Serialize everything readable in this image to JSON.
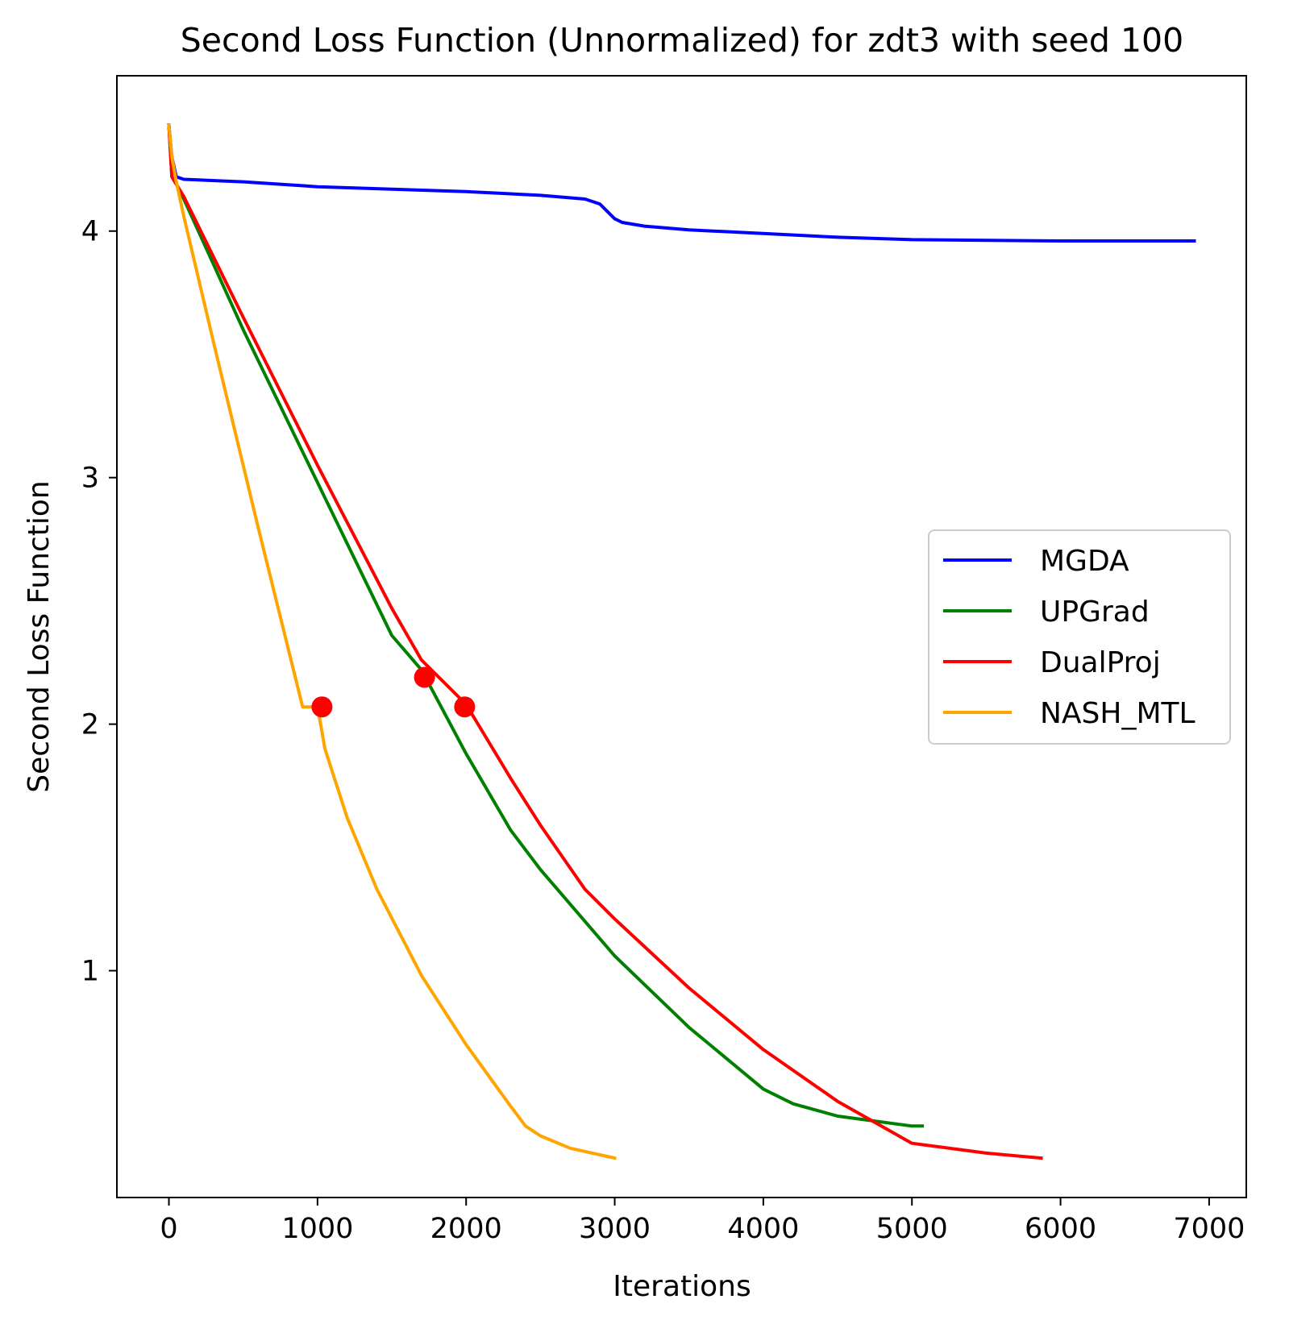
{
  "chart_data": {
    "type": "line",
    "title": "Second Loss Function (Unnormalized) for zdt3 with seed 100",
    "xlabel": "Iterations",
    "ylabel": "Second Loss Function",
    "xlim": [
      -350,
      7250
    ],
    "ylim": [
      0.08,
      4.63
    ],
    "xticks": [
      0,
      1000,
      2000,
      3000,
      4000,
      5000,
      6000,
      7000
    ],
    "yticks": [
      1,
      2,
      3,
      4
    ],
    "grid": false,
    "legend_position": "center-right",
    "series": [
      {
        "name": "MGDA",
        "color": "#0000ff",
        "x": [
          0,
          20,
          50,
          100,
          500,
          1000,
          2000,
          2500,
          2800,
          2900,
          2950,
          3000,
          3050,
          3200,
          3500,
          4000,
          4500,
          5000,
          6000,
          6900
        ],
        "y": [
          4.43,
          4.3,
          4.22,
          4.21,
          4.2,
          4.18,
          4.16,
          4.145,
          4.13,
          4.11,
          4.08,
          4.05,
          4.035,
          4.02,
          4.005,
          3.99,
          3.975,
          3.965,
          3.96,
          3.96
        ]
      },
      {
        "name": "UPGrad",
        "color": "#008000",
        "x": [
          0,
          20,
          50,
          100,
          500,
          1000,
          1500,
          1700,
          2000,
          2300,
          2500,
          3000,
          3500,
          4000,
          4200,
          4500,
          5000,
          5070
        ],
        "y": [
          4.43,
          4.22,
          4.19,
          4.13,
          3.6,
          2.98,
          2.36,
          2.22,
          1.88,
          1.57,
          1.41,
          1.06,
          0.77,
          0.52,
          0.46,
          0.41,
          0.37,
          0.37
        ]
      },
      {
        "name": "DualProj",
        "color": "#ff0000",
        "x": [
          0,
          20,
          50,
          100,
          500,
          1000,
          1500,
          1700,
          2000,
          2300,
          2500,
          2800,
          3000,
          3500,
          4000,
          4500,
          5000,
          5500,
          5870
        ],
        "y": [
          4.43,
          4.22,
          4.19,
          4.14,
          3.65,
          3.05,
          2.47,
          2.26,
          2.08,
          1.78,
          1.59,
          1.33,
          1.21,
          0.93,
          0.68,
          0.47,
          0.3,
          0.26,
          0.24
        ]
      },
      {
        "name": "NASH_MTL",
        "color": "#ffa500",
        "x": [
          0,
          20,
          50,
          100,
          300,
          600,
          900,
          1000,
          1050,
          1200,
          1400,
          1700,
          2000,
          2300,
          2400,
          2500,
          2700,
          3000
        ],
        "y": [
          4.43,
          4.3,
          4.2,
          4.06,
          3.55,
          2.8,
          2.07,
          2.07,
          1.9,
          1.62,
          1.33,
          0.98,
          0.7,
          0.45,
          0.37,
          0.33,
          0.28,
          0.24
        ]
      }
    ],
    "markers": {
      "color": "#ff0000",
      "points": [
        {
          "x": 1030,
          "y": 2.07
        },
        {
          "x": 1720,
          "y": 2.19
        },
        {
          "x": 1990,
          "y": 2.07
        }
      ]
    }
  }
}
